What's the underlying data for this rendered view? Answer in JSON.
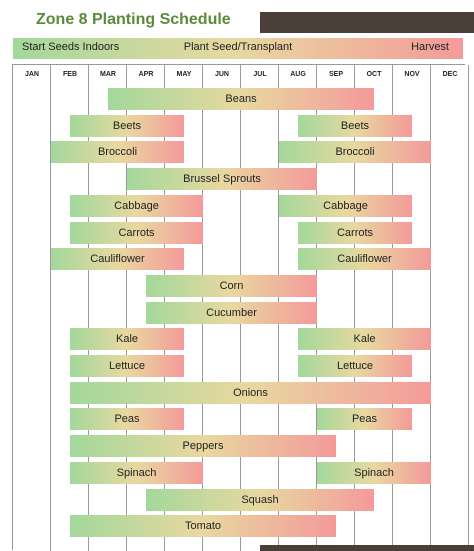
{
  "title": "Zone 8 Planting Schedule",
  "legend": {
    "start": "Start Seeds Indoors",
    "middle": "Plant Seed/Transplant",
    "end": "Harvest"
  },
  "colors": {
    "start": "#a3d89b",
    "middle": "#e8d8a0",
    "end": "#f49a9a",
    "title": "#5a8a3a",
    "band": "#4a3f39"
  },
  "chart_data": {
    "type": "gantt",
    "months": [
      "JAN",
      "FEB",
      "MAR",
      "APR",
      "MAY",
      "JUN",
      "JUL",
      "AUG",
      "SEP",
      "OCT",
      "NOV",
      "DEC"
    ],
    "x_range": [
      0,
      12
    ],
    "rows": [
      {
        "crop": "Beans",
        "bars": [
          [
            2.5,
            9.5
          ]
        ]
      },
      {
        "crop": "Beets",
        "bars": [
          [
            1.5,
            4.5
          ],
          [
            7.5,
            10.5
          ]
        ]
      },
      {
        "crop": "Broccoli",
        "bars": [
          [
            1.0,
            4.5
          ],
          [
            7.0,
            11.0
          ]
        ]
      },
      {
        "crop": "Brussel Sprouts",
        "bars": [
          [
            3.0,
            8.0
          ]
        ]
      },
      {
        "crop": "Cabbage",
        "bars": [
          [
            1.5,
            5.0
          ],
          [
            7.0,
            10.5
          ]
        ]
      },
      {
        "crop": "Carrots",
        "bars": [
          [
            1.5,
            5.0
          ],
          [
            7.5,
            10.5
          ]
        ]
      },
      {
        "crop": "Cauliflower",
        "bars": [
          [
            1.0,
            4.5
          ],
          [
            7.5,
            11.0
          ]
        ]
      },
      {
        "crop": "Corn",
        "bars": [
          [
            3.5,
            8.0
          ]
        ]
      },
      {
        "crop": "Cucumber",
        "bars": [
          [
            3.5,
            8.0
          ]
        ]
      },
      {
        "crop": "Kale",
        "bars": [
          [
            1.5,
            4.5
          ],
          [
            7.5,
            11.0
          ]
        ]
      },
      {
        "crop": "Lettuce",
        "bars": [
          [
            1.5,
            4.5
          ],
          [
            7.5,
            10.5
          ]
        ]
      },
      {
        "crop": "Onions",
        "bars": [
          [
            1.5,
            11.0
          ]
        ]
      },
      {
        "crop": "Peas",
        "bars": [
          [
            1.5,
            4.5
          ],
          [
            8.0,
            10.5
          ]
        ]
      },
      {
        "crop": "Peppers",
        "bars": [
          [
            1.5,
            8.5
          ]
        ]
      },
      {
        "crop": "Spinach",
        "bars": [
          [
            1.5,
            5.0
          ],
          [
            8.0,
            11.0
          ]
        ]
      },
      {
        "crop": "Squash",
        "bars": [
          [
            3.5,
            9.5
          ]
        ]
      },
      {
        "crop": "Tomato",
        "bars": [
          [
            1.5,
            8.5
          ]
        ]
      }
    ]
  }
}
